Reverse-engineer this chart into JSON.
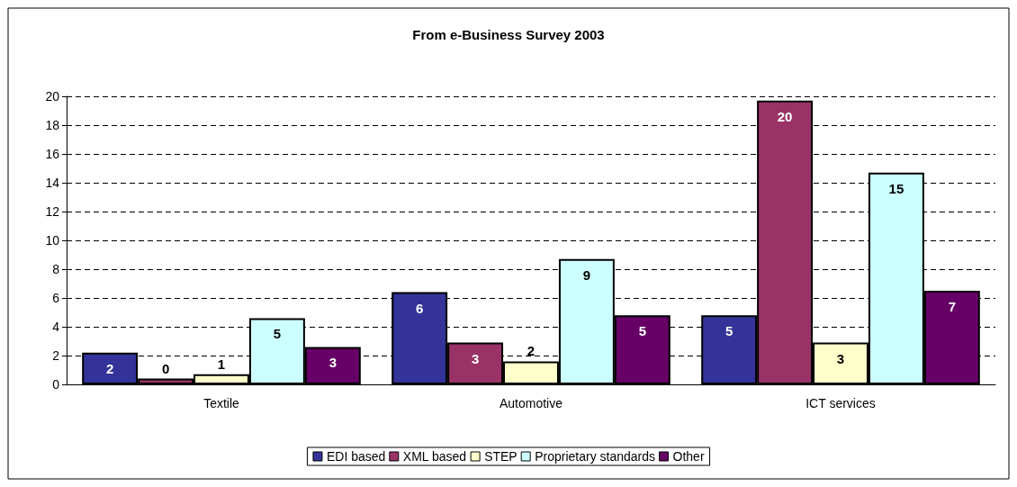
{
  "chart_data": {
    "type": "bar",
    "title": "From e-Business Survey 2003",
    "categories": [
      "Textile",
      "Automotive",
      "ICT services"
    ],
    "series": [
      {
        "name": "EDI based",
        "color": "#333399",
        "values": [
          2.2,
          6.4,
          4.8
        ],
        "value_labels": [
          "2",
          "6",
          "5"
        ]
      },
      {
        "name": "XML based",
        "color": "#993366",
        "values": [
          0.4,
          2.9,
          19.7
        ],
        "value_labels": [
          "0",
          "3",
          "20"
        ]
      },
      {
        "name": "STEP",
        "color": "#ffffcc",
        "values": [
          0.7,
          1.6,
          2.9
        ],
        "value_labels": [
          "1",
          "2",
          "3"
        ]
      },
      {
        "name": "Proprietary standards",
        "color": "#ccffff",
        "values": [
          4.6,
          8.7,
          14.7
        ],
        "value_labels": [
          "5",
          "9",
          "15"
        ]
      },
      {
        "name": "Other",
        "color": "#660066",
        "values": [
          2.6,
          4.8,
          6.5
        ],
        "value_labels": [
          "3",
          "5",
          "7"
        ]
      }
    ],
    "ylim": [
      0,
      20
    ],
    "yticks": [
      0,
      2,
      4,
      6,
      8,
      10,
      12,
      14,
      16,
      18,
      20
    ],
    "grid": "y",
    "legend": "bottom"
  }
}
